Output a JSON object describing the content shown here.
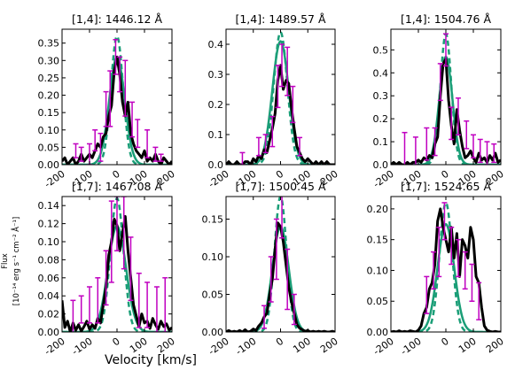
{
  "figure": {
    "xlabel": "Velocity [km/s]",
    "ylabel_line1": "Flux",
    "ylabel_line2": "[10⁻¹⁴ erg s⁻¹ cm⁻² Å⁻¹]",
    "colors": {
      "observed": "#000000",
      "model_solid": "#1a9e77",
      "model_dashed": "#1a9e77",
      "errorbars": "#c000c0"
    }
  },
  "chart_data": [
    {
      "type": "line",
      "title": "[1,4]: 1446.12 Å",
      "xlim": [
        -200,
        200
      ],
      "ylim": [
        0,
        0.39
      ],
      "xticks": [
        -200,
        -100,
        0,
        100,
        200
      ],
      "xticklabels": [
        "-200",
        "-100",
        "0",
        "100",
        "200"
      ],
      "yticks": [
        0,
        0.05,
        0.1,
        0.15,
        0.2,
        0.25,
        0.3,
        0.35
      ],
      "yticklabels": [
        "0.00",
        "0.05",
        "0.10",
        "0.15",
        "0.20",
        "0.25",
        "0.30",
        "0.35"
      ],
      "model": {
        "amp": 0.31,
        "sigma": 28
      },
      "model_dashed": {
        "amp": 0.37,
        "sigma": 22
      },
      "observed": {
        "x": [
          -200,
          -190,
          -180,
          -170,
          -160,
          -150,
          -140,
          -130,
          -120,
          -110,
          -100,
          -90,
          -80,
          -70,
          -60,
          -50,
          -40,
          -30,
          -20,
          -10,
          0,
          10,
          20,
          30,
          40,
          50,
          60,
          70,
          80,
          90,
          100,
          110,
          120,
          130,
          140,
          150,
          160,
          170,
          180,
          190,
          200
        ],
        "y": [
          0.01,
          0.02,
          0.0,
          0.01,
          0.02,
          0.0,
          0.01,
          0.03,
          0.01,
          0.02,
          0.03,
          0.02,
          0.04,
          0.06,
          0.05,
          0.08,
          0.09,
          0.14,
          0.17,
          0.27,
          0.31,
          0.26,
          0.18,
          0.14,
          0.18,
          0.09,
          0.06,
          0.04,
          0.03,
          0.02,
          0.04,
          0.01,
          0.02,
          0.01,
          0.03,
          0.01,
          0.0,
          0.02,
          0.01,
          0.0,
          0.01
        ]
      },
      "errorbars": [
        {
          "x": -150,
          "y": 0.04,
          "err": 0.02
        },
        {
          "x": -130,
          "y": 0.03,
          "err": 0.02
        },
        {
          "x": -100,
          "y": 0.03,
          "err": 0.03
        },
        {
          "x": -80,
          "y": 0.07,
          "err": 0.03
        },
        {
          "x": -60,
          "y": 0.05,
          "err": 0.04
        },
        {
          "x": -40,
          "y": 0.16,
          "err": 0.05
        },
        {
          "x": -25,
          "y": 0.19,
          "err": 0.08
        },
        {
          "x": -5,
          "y": 0.31,
          "err": 0.05
        },
        {
          "x": 10,
          "y": 0.26,
          "err": 0.05
        },
        {
          "x": 30,
          "y": 0.22,
          "err": 0.08
        },
        {
          "x": 55,
          "y": 0.13,
          "err": 0.05
        },
        {
          "x": 75,
          "y": 0.09,
          "err": 0.04
        },
        {
          "x": 110,
          "y": 0.06,
          "err": 0.04
        },
        {
          "x": 140,
          "y": 0.03,
          "err": 0.02
        },
        {
          "x": 160,
          "y": 0.02,
          "err": 0.01
        }
      ]
    },
    {
      "type": "line",
      "title": "[1,4]: 1489.57 Å",
      "xlim": [
        -200,
        200
      ],
      "ylim": [
        0,
        0.45
      ],
      "xticks": [
        -200,
        -100,
        0,
        100,
        200
      ],
      "xticklabels": [
        "-200",
        "-100",
        "0",
        "100",
        "200"
      ],
      "yticks": [
        0,
        0.1,
        0.2,
        0.3,
        0.4
      ],
      "yticklabels": [
        "0.0",
        "0.1",
        "0.2",
        "0.3",
        "0.4"
      ],
      "model": {
        "amp": 0.41,
        "sigma": 30
      },
      "model_dashed": {
        "amp": 0.44,
        "sigma": 25
      },
      "observed": {
        "x": [
          -200,
          -190,
          -180,
          -170,
          -160,
          -150,
          -140,
          -130,
          -120,
          -110,
          -100,
          -90,
          -80,
          -70,
          -60,
          -50,
          -40,
          -30,
          -20,
          -10,
          0,
          10,
          20,
          30,
          40,
          50,
          60,
          70,
          80,
          90,
          100,
          110,
          120,
          130,
          140,
          150,
          160,
          170,
          180,
          190,
          200
        ],
        "y": [
          0.0,
          0.01,
          0.0,
          0.0,
          0.01,
          0.0,
          0.0,
          0.01,
          0.01,
          0.0,
          0.02,
          0.01,
          0.03,
          0.02,
          0.05,
          0.04,
          0.08,
          0.12,
          0.17,
          0.28,
          0.33,
          0.25,
          0.28,
          0.27,
          0.19,
          0.12,
          0.06,
          0.04,
          0.02,
          0.01,
          0.02,
          0.01,
          0.0,
          0.01,
          0.0,
          0.01,
          0.0,
          0.01,
          0.0,
          0.0,
          0.0
        ]
      },
      "errorbars": [
        {
          "x": -140,
          "y": 0.02,
          "err": 0.02
        },
        {
          "x": -80,
          "y": 0.06,
          "err": 0.03
        },
        {
          "x": -55,
          "y": 0.07,
          "err": 0.03
        },
        {
          "x": -30,
          "y": 0.11,
          "err": 0.05
        },
        {
          "x": -10,
          "y": 0.26,
          "err": 0.07
        },
        {
          "x": 5,
          "y": 0.33,
          "err": 0.07
        },
        {
          "x": 25,
          "y": 0.31,
          "err": 0.08
        },
        {
          "x": 45,
          "y": 0.2,
          "err": 0.06
        },
        {
          "x": 70,
          "y": 0.06,
          "err": 0.03
        }
      ]
    },
    {
      "type": "line",
      "title": "[1,4]: 1504.76 Å",
      "xlim": [
        -200,
        200
      ],
      "ylim": [
        0,
        0.59
      ],
      "xticks": [
        -200,
        -100,
        0,
        100,
        200
      ],
      "xticklabels": [
        "-200",
        "-100",
        "0",
        "100",
        "200"
      ],
      "yticks": [
        0,
        0.1,
        0.2,
        0.3,
        0.4,
        0.5
      ],
      "yticklabels": [
        "0.0",
        "0.1",
        "0.2",
        "0.3",
        "0.4",
        "0.5"
      ],
      "model": {
        "amp": 0.47,
        "sigma": 24
      },
      "model_dashed": {
        "amp": 0.57,
        "sigma": 20
      },
      "observed": {
        "x": [
          -200,
          -190,
          -180,
          -170,
          -160,
          -150,
          -140,
          -130,
          -120,
          -110,
          -100,
          -90,
          -80,
          -70,
          -60,
          -50,
          -40,
          -30,
          -20,
          -10,
          0,
          10,
          20,
          30,
          40,
          50,
          60,
          70,
          80,
          90,
          100,
          110,
          120,
          130,
          140,
          150,
          160,
          170,
          180,
          190,
          200
        ],
        "y": [
          0.0,
          0.01,
          0.0,
          0.01,
          0.0,
          0.0,
          0.01,
          0.0,
          0.01,
          0.01,
          0.02,
          0.01,
          0.03,
          0.02,
          0.04,
          0.03,
          0.09,
          0.12,
          0.3,
          0.44,
          0.46,
          0.28,
          0.17,
          0.09,
          0.24,
          0.15,
          0.08,
          0.03,
          0.04,
          0.06,
          0.03,
          0.01,
          0.05,
          0.02,
          0.03,
          0.01,
          0.04,
          0.02,
          0.05,
          0.01,
          0.02
        ]
      },
      "errorbars": [
        {
          "x": -150,
          "y": 0.06,
          "err": 0.08
        },
        {
          "x": -110,
          "y": 0.06,
          "err": 0.06
        },
        {
          "x": -70,
          "y": 0.09,
          "err": 0.07
        },
        {
          "x": -40,
          "y": 0.1,
          "err": 0.06
        },
        {
          "x": -20,
          "y": 0.36,
          "err": 0.08
        },
        {
          "x": 0,
          "y": 0.5,
          "err": 0.07
        },
        {
          "x": 20,
          "y": 0.18,
          "err": 0.07
        },
        {
          "x": 45,
          "y": 0.21,
          "err": 0.08
        },
        {
          "x": 75,
          "y": 0.13,
          "err": 0.06
        },
        {
          "x": 100,
          "y": 0.08,
          "err": 0.05
        },
        {
          "x": 125,
          "y": 0.06,
          "err": 0.05
        },
        {
          "x": 150,
          "y": 0.05,
          "err": 0.05
        },
        {
          "x": 175,
          "y": 0.05,
          "err": 0.04
        }
      ]
    },
    {
      "type": "line",
      "title": "[1,7]: 1467.08 Å",
      "xlim": [
        -200,
        200
      ],
      "ylim": [
        0,
        0.15
      ],
      "xticks": [
        -200,
        -100,
        0,
        100,
        200
      ],
      "xticklabels": [
        "-200",
        "-100",
        "0",
        "100",
        "200"
      ],
      "yticks": [
        0,
        0.02,
        0.04,
        0.06,
        0.08,
        0.1,
        0.12,
        0.14
      ],
      "yticklabels": [
        "0.00",
        "0.02",
        "0.04",
        "0.06",
        "0.08",
        "0.10",
        "0.12",
        "0.14"
      ],
      "model": {
        "amp": 0.117,
        "sigma": 33
      },
      "model_dashed": {
        "amp": 0.148,
        "sigma": 24
      },
      "observed": {
        "x": [
          -200,
          -190,
          -180,
          -170,
          -160,
          -150,
          -140,
          -130,
          -120,
          -110,
          -100,
          -90,
          -80,
          -70,
          -60,
          -50,
          -40,
          -30,
          -20,
          -10,
          0,
          10,
          20,
          30,
          40,
          50,
          60,
          70,
          80,
          90,
          100,
          110,
          120,
          130,
          140,
          150,
          160,
          170,
          180,
          190,
          200
        ],
        "y": [
          0.035,
          0.005,
          0.012,
          0.0,
          0.01,
          0.002,
          0.008,
          0.001,
          0.006,
          0.012,
          0.003,
          0.008,
          0.004,
          0.015,
          0.01,
          0.03,
          0.05,
          0.085,
          0.1,
          0.125,
          0.118,
          0.09,
          0.11,
          0.128,
          0.09,
          0.06,
          0.03,
          0.018,
          0.006,
          0.02,
          0.01,
          0.012,
          0.004,
          0.015,
          0.008,
          0.003,
          0.012,
          0.006,
          0.009,
          0.002,
          0.005
        ]
      },
      "errorbars": [
        {
          "x": -160,
          "y": 0.015,
          "err": 0.02
        },
        {
          "x": -130,
          "y": 0.025,
          "err": 0.015
        },
        {
          "x": -100,
          "y": 0.03,
          "err": 0.02
        },
        {
          "x": -70,
          "y": 0.035,
          "err": 0.025
        },
        {
          "x": -40,
          "y": 0.06,
          "err": 0.03
        },
        {
          "x": -20,
          "y": 0.1,
          "err": 0.045
        },
        {
          "x": 0,
          "y": 0.12,
          "err": 0.03
        },
        {
          "x": 25,
          "y": 0.11,
          "err": 0.04
        },
        {
          "x": 50,
          "y": 0.07,
          "err": 0.035
        },
        {
          "x": 80,
          "y": 0.035,
          "err": 0.03
        },
        {
          "x": 110,
          "y": 0.03,
          "err": 0.025
        },
        {
          "x": 145,
          "y": 0.025,
          "err": 0.025
        },
        {
          "x": 175,
          "y": 0.03,
          "err": 0.03
        }
      ]
    },
    {
      "type": "line",
      "title": "[1,7]: 1500.45 Å",
      "xlim": [
        -200,
        200
      ],
      "ylim": [
        0,
        0.18
      ],
      "xticks": [
        -200,
        -100,
        0,
        100,
        200
      ],
      "xticklabels": [
        "-200",
        "-100",
        "0",
        "100",
        "200"
      ],
      "yticks": [
        0,
        0.05,
        0.1,
        0.15
      ],
      "yticklabels": [
        "0.00",
        "0.05",
        "0.10",
        "0.15"
      ],
      "model": {
        "amp": 0.14,
        "sigma": 30
      },
      "model_dashed": {
        "amp": 0.18,
        "sigma": 22
      },
      "observed": {
        "x": [
          -200,
          -190,
          -180,
          -170,
          -160,
          -150,
          -140,
          -130,
          -120,
          -110,
          -100,
          -90,
          -80,
          -70,
          -60,
          -50,
          -40,
          -30,
          -20,
          -10,
          0,
          10,
          20,
          30,
          40,
          50,
          60,
          70,
          80,
          90,
          100,
          110,
          120,
          130,
          140,
          150,
          160,
          170,
          180,
          190,
          200
        ],
        "y": [
          0.0,
          0.002,
          0.0,
          0.001,
          0.0,
          0.002,
          0.0,
          0.003,
          0.0,
          0.001,
          0.004,
          0.002,
          0.008,
          0.012,
          0.02,
          0.025,
          0.05,
          0.07,
          0.11,
          0.145,
          0.14,
          0.12,
          0.09,
          0.06,
          0.04,
          0.025,
          0.01,
          0.005,
          0.003,
          0.001,
          0.002,
          0.0,
          0.001,
          0.0,
          0.001,
          0.0,
          0.001,
          0.0,
          0.0,
          0.001,
          0.0
        ]
      },
      "errorbars": [
        {
          "x": -60,
          "y": 0.02,
          "err": 0.015
        },
        {
          "x": -35,
          "y": 0.07,
          "err": 0.03
        },
        {
          "x": -15,
          "y": 0.11,
          "err": 0.04
        },
        {
          "x": 5,
          "y": 0.155,
          "err": 0.03
        },
        {
          "x": 25,
          "y": 0.07,
          "err": 0.04
        },
        {
          "x": 50,
          "y": 0.03,
          "err": 0.02
        }
      ]
    },
    {
      "type": "line",
      "title": "[1,7]: 1524.65 Å",
      "xlim": [
        -200,
        200
      ],
      "ylim": [
        0,
        0.22
      ],
      "xticks": [
        -200,
        -100,
        0,
        100,
        200
      ],
      "xticklabels": [
        "-200",
        "-100",
        "0",
        "100",
        "200"
      ],
      "yticks": [
        0,
        0.05,
        0.1,
        0.15,
        0.2
      ],
      "yticklabels": [
        "0.00",
        "0.05",
        "0.10",
        "0.15",
        "0.20"
      ],
      "model": {
        "amp": 0.175,
        "sigma": 30
      },
      "model_dashed": {
        "amp": 0.21,
        "sigma": 23
      },
      "observed": {
        "x": [
          -200,
          -190,
          -180,
          -170,
          -160,
          -150,
          -140,
          -130,
          -120,
          -110,
          -100,
          -90,
          -80,
          -70,
          -60,
          -50,
          -40,
          -30,
          -20,
          -10,
          0,
          10,
          20,
          30,
          40,
          50,
          60,
          70,
          80,
          90,
          100,
          110,
          120,
          130,
          140,
          150,
          160,
          170,
          180,
          190,
          200
        ],
        "y": [
          0.0,
          0.001,
          0.0,
          0.002,
          0.0,
          0.001,
          0.0,
          0.002,
          0.001,
          0.0,
          0.003,
          0.01,
          0.03,
          0.04,
          0.07,
          0.08,
          0.11,
          0.18,
          0.2,
          0.17,
          0.15,
          0.13,
          0.17,
          0.12,
          0.16,
          0.09,
          0.15,
          0.14,
          0.12,
          0.17,
          0.15,
          0.09,
          0.08,
          0.04,
          0.01,
          0.003,
          0.001,
          0.0,
          0.001,
          0.0,
          0.0
        ]
      },
      "errorbars": [
        {
          "x": -70,
          "y": 0.06,
          "err": 0.03
        },
        {
          "x": -45,
          "y": 0.1,
          "err": 0.03
        },
        {
          "x": -25,
          "y": 0.13,
          "err": 0.04
        },
        {
          "x": -5,
          "y": 0.18,
          "err": 0.03
        },
        {
          "x": 20,
          "y": 0.14,
          "err": 0.03
        },
        {
          "x": 45,
          "y": 0.12,
          "err": 0.03
        },
        {
          "x": 70,
          "y": 0.1,
          "err": 0.03
        },
        {
          "x": 95,
          "y": 0.08,
          "err": 0.03
        },
        {
          "x": 120,
          "y": 0.05,
          "err": 0.03
        }
      ]
    }
  ]
}
